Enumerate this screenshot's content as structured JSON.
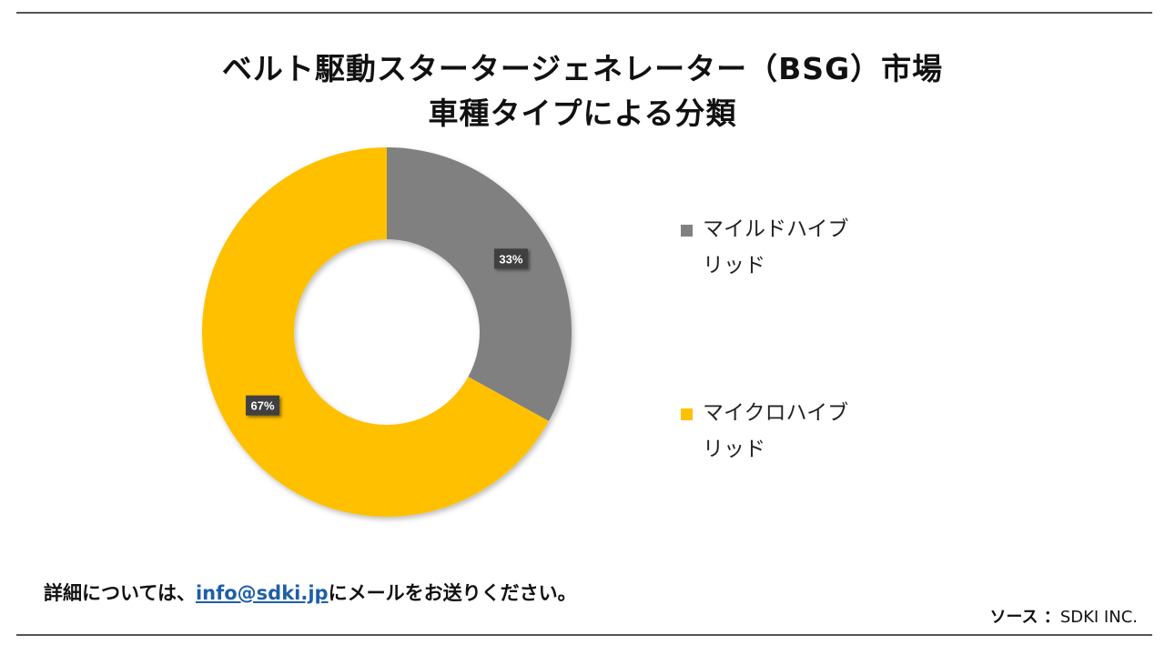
{
  "title_line1": "ベルト駆動スタータージェネレーター（BSG）市場",
  "title_line2": "車種タイプによる分類",
  "chart_data": {
    "type": "pie",
    "hole": true,
    "categories": [
      "マイルドハイブリッド",
      "マイクロハイブリッド"
    ],
    "values": [
      33,
      67
    ],
    "data_labels": [
      "33%",
      "67%"
    ],
    "colors": [
      "#808080",
      "#ffc000"
    ],
    "legend_position": "right"
  },
  "legend": [
    {
      "label": "マイルドハイブ",
      "label_cont": "リッド",
      "color": "#808080"
    },
    {
      "label": "マイクロハイブ",
      "label_cont": "リッド",
      "color": "#ffc000"
    }
  ],
  "footer": {
    "prefix": "詳細については、",
    "email": "info@sdki.jp",
    "suffix": "にメールをお送りください。"
  },
  "source": {
    "label": "ソース ：",
    "value": "SDKI INC."
  }
}
